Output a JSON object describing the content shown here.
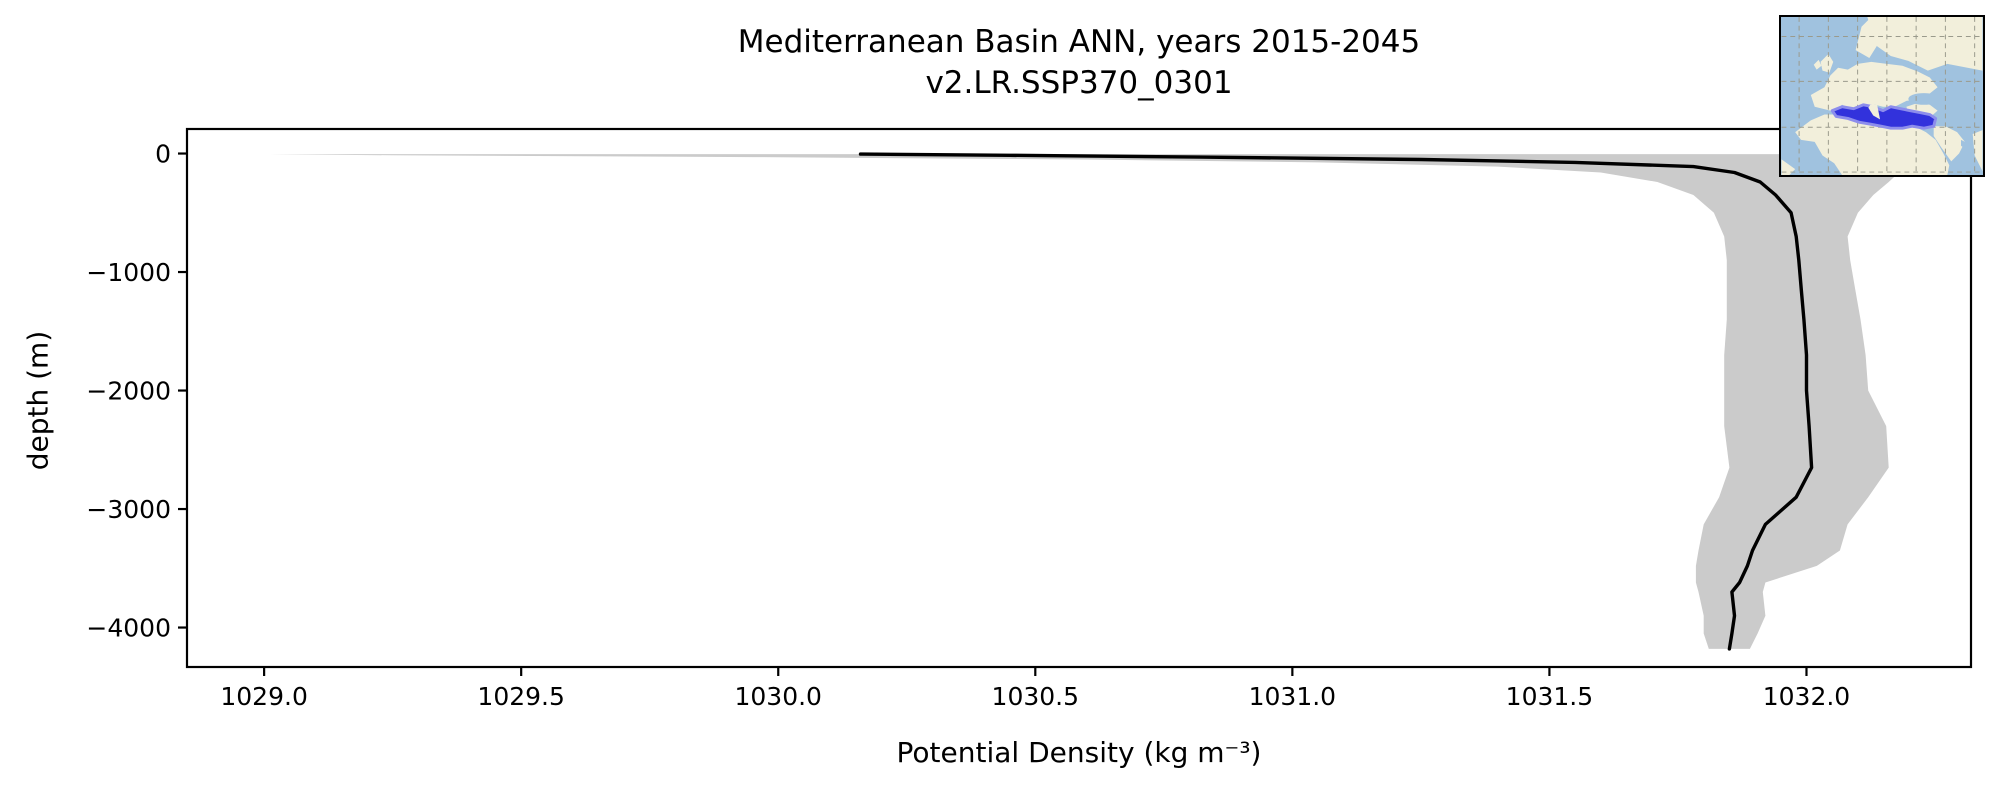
{
  "chart_data": {
    "type": "line",
    "title": "Mediterranean Basin ANN, years 2015-2045",
    "subtitle": "v2.LR.SSP370_0301",
    "xlabel": "Potential Density (kg m⁻³)",
    "ylabel": "depth (m)",
    "xlim": [
      1028.85,
      1032.32
    ],
    "ylim": [
      -4333,
      207
    ],
    "xticks": [
      1029.0,
      1029.5,
      1030.0,
      1030.5,
      1031.0,
      1031.5,
      1032.0
    ],
    "yticks": [
      0,
      -1000,
      -2000,
      -3000,
      -4000
    ],
    "grid": false,
    "legend": "none",
    "line_color": "#000000",
    "band_color": "#cbcbcb",
    "depth_levels": [
      -5,
      -15,
      -30,
      -50,
      -75,
      -110,
      -160,
      -240,
      -350,
      -500,
      -700,
      -900,
      -1150,
      -1400,
      -1700,
      -2000,
      -2300,
      -2650,
      -2900,
      -3130,
      -3350,
      -3480,
      -3620,
      -3700,
      -3900,
      -4050,
      -4180
    ],
    "series": [
      {
        "name": "ensemble mean potential density",
        "values": [
          1030.16,
          1030.45,
          1030.82,
          1031.25,
          1031.55,
          1031.78,
          1031.86,
          1031.91,
          1031.94,
          1031.97,
          1031.98,
          1031.985,
          1031.99,
          1031.995,
          1032.0,
          1032.0,
          1032.005,
          1032.01,
          1031.98,
          1031.92,
          1031.895,
          1031.885,
          1031.87,
          1031.855,
          1031.86,
          1031.855,
          1031.85
        ]
      },
      {
        "name": "envelope minimum",
        "values": [
          1029.01,
          1029.25,
          1029.95,
          1030.6,
          1031.05,
          1031.4,
          1031.6,
          1031.71,
          1031.78,
          1031.82,
          1031.84,
          1031.845,
          1031.845,
          1031.845,
          1031.84,
          1031.84,
          1031.84,
          1031.85,
          1031.83,
          1031.8,
          1031.79,
          1031.785,
          1031.785,
          1031.79,
          1031.8,
          1031.8,
          1031.81
        ]
      },
      {
        "name": "envelope maximum",
        "values": [
          1032.19,
          1032.19,
          1032.2,
          1032.2,
          1032.2,
          1032.19,
          1032.18,
          1032.16,
          1032.13,
          1032.1,
          1032.08,
          1032.085,
          1032.095,
          1032.105,
          1032.115,
          1032.12,
          1032.155,
          1032.16,
          1032.12,
          1032.08,
          1032.065,
          1032.02,
          1031.92,
          1031.915,
          1031.92,
          1031.905,
          1031.89
        ]
      }
    ]
  },
  "inset_map": {
    "description": "Mediterranean Basin location inset",
    "colors": {
      "ocean": "#a0c2df",
      "land": "#f2efdb",
      "grid": "#9a9a8c",
      "region_fill": "#3232dc",
      "region_halo": "#8d8dec",
      "border": "#000000"
    }
  }
}
